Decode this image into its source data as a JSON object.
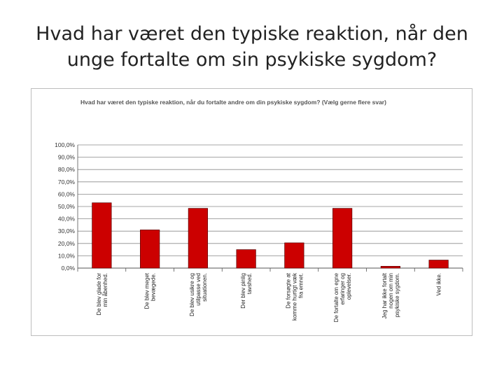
{
  "slide": {
    "title_line1": "Hvad har været den typiske reaktion, når den",
    "title_line2": "unge fortalte om sin psykiske sygdom?"
  },
  "chart_data": {
    "type": "bar",
    "title": "Hvad har været den typiske reaktion, når du fortalte andre om din psykiske sygdom? (Vælg gerne flere svar)",
    "xlabel": "",
    "ylabel": "",
    "ylim": [
      0,
      100
    ],
    "y_ticks": [
      "0,0%",
      "10,0%",
      "20,0%",
      "30,0%",
      "40,0%",
      "50,0%",
      "60,0%",
      "70,0%",
      "80,0%",
      "90,0%",
      "100,0%"
    ],
    "grid": true,
    "legend": "none",
    "bar_color": "#cc0000",
    "categories": [
      [
        "De blev glade for",
        "min åbenhed."
      ],
      [
        "De blev meget",
        "bevægede."
      ],
      [
        "De blev usikre og",
        "utilpasse ved",
        "situationen."
      ],
      [
        "Der blev pinlig",
        "tavshed."
      ],
      [
        "De forsøgte at",
        "komme hurtigt væk",
        "fra emnet."
      ],
      [
        "De fortalte om egne",
        "erfaringer og",
        "oplevelser."
      ],
      [
        "Jeg har ikke fortalt",
        "nogen om min",
        "psykiske sygdom."
      ],
      [
        "Ved ikke."
      ]
    ],
    "values": [
      53,
      31,
      48.5,
      15,
      20.5,
      48.5,
      1.5,
      6.5
    ]
  }
}
